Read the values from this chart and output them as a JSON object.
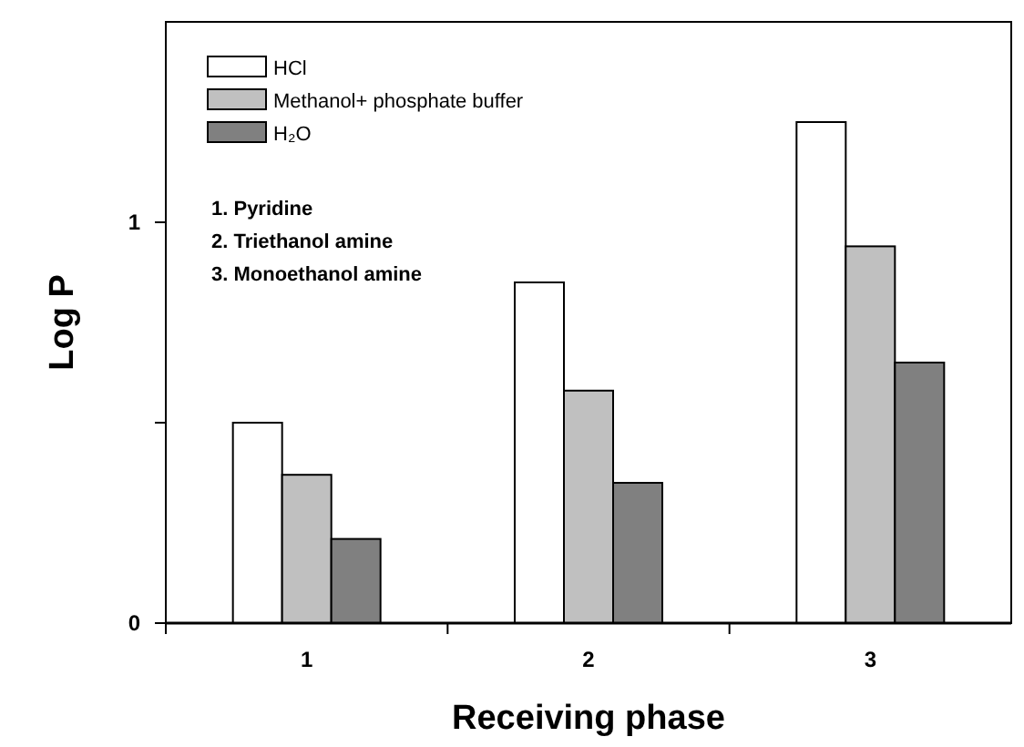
{
  "chart_data": {
    "type": "bar",
    "xlabel": "Receiving phase",
    "ylabel": "Log P",
    "categories": [
      "1",
      "2",
      "3"
    ],
    "series": [
      {
        "name": "HCl",
        "color": "#ffffff",
        "values": [
          0.5,
          0.85,
          1.25
        ]
      },
      {
        "name": "Methanol+ phosphate buffer",
        "color": "#c0c0c0",
        "values": [
          0.37,
          0.58,
          0.94
        ]
      },
      {
        "name": "H₂O",
        "color": "#808080",
        "values": [
          0.21,
          0.35,
          0.65
        ]
      }
    ],
    "ylim": [
      0,
      1.5
    ],
    "yticks": [
      0,
      {
        "value": 0.5,
        "label": null
      },
      1
    ],
    "grid": false,
    "legend": "top left",
    "annotations": [
      "1. Pyridine",
      "2. Triethanol amine",
      "3. Monoethanol amine"
    ]
  }
}
